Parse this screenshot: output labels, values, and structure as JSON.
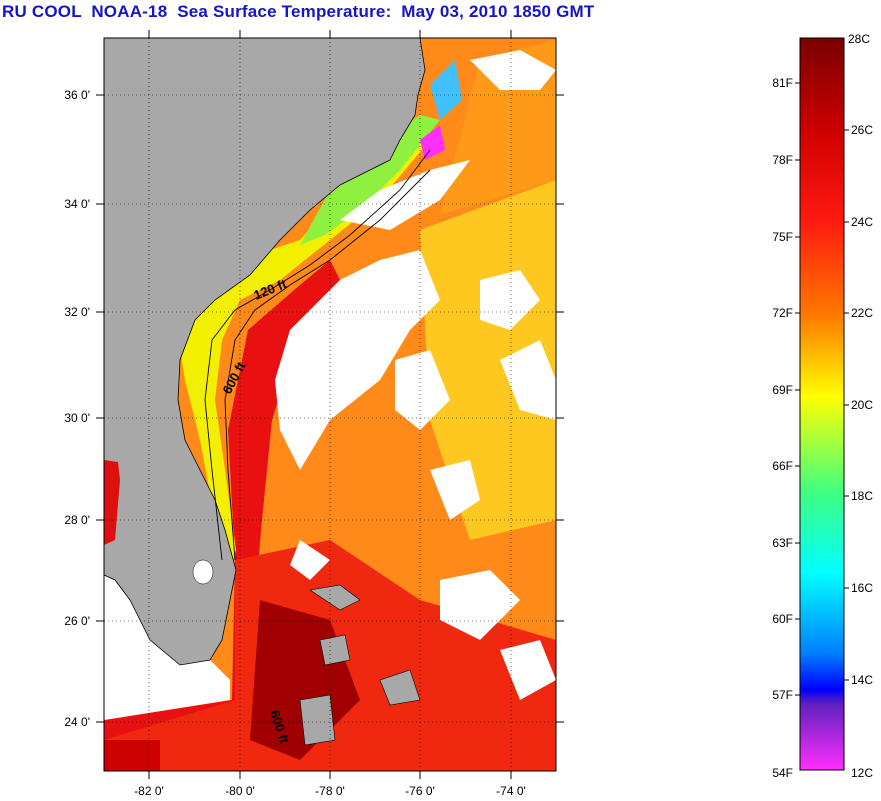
{
  "title": "RU COOL  NOAA-18  Sea Surface Temperature:  May 03, 2010 1850 GMT",
  "map": {
    "lon_range": [
      -83,
      -73
    ],
    "lat_range": [
      23,
      37
    ],
    "lat_ticks": [
      "36 0'",
      "34 0'",
      "32 0'",
      "30 0'",
      "28 0'",
      "26 0'",
      "24 0'"
    ],
    "lon_ticks": [
      "-82 0'",
      "-80 0'",
      "-78 0'",
      "-76 0'",
      "-74 0'"
    ],
    "isobath_labels": [
      "120 ft",
      "600 ft",
      "600 ft"
    ],
    "land_color": "#a8a8a8",
    "cloud_color": "#ffffff"
  },
  "colorbar": {
    "celsius_labels": [
      "28C",
      "26C",
      "24C",
      "22C",
      "20C",
      "18C",
      "16C",
      "14C",
      "12C"
    ],
    "fahrenheit_labels": [
      "81F",
      "78F",
      "75F",
      "72F",
      "69F",
      "66F",
      "63F",
      "60F",
      "57F",
      "54F"
    ],
    "colors": [
      "#7a0000",
      "#ff1010",
      "#ff7a00",
      "#ffff00",
      "#40ff80",
      "#00ffff",
      "#0090ff",
      "#0000ff",
      "#6020c0",
      "#ff30ff"
    ]
  }
}
